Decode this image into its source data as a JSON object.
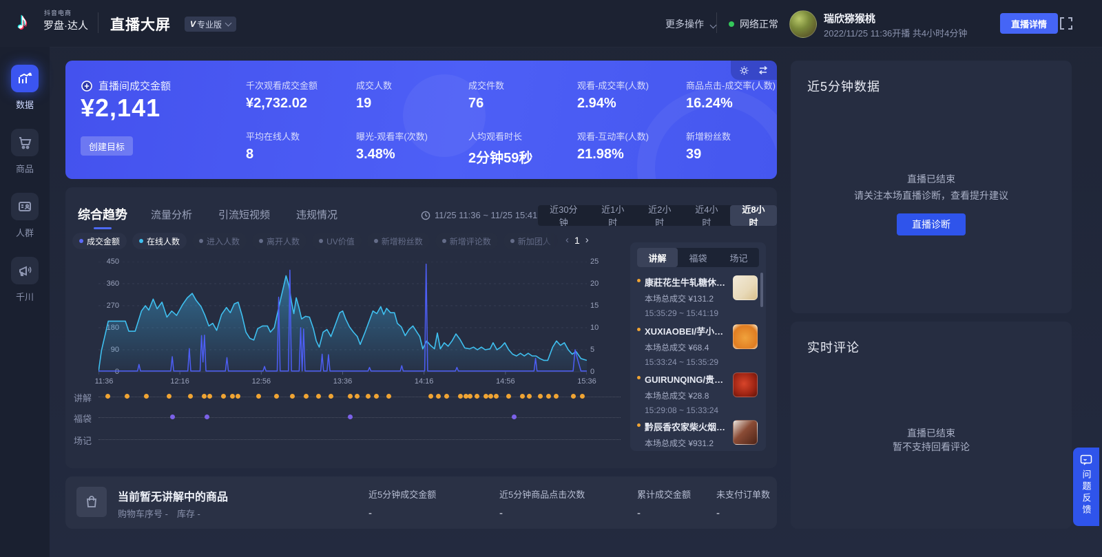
{
  "colors": {
    "page-bg": "#20263a",
    "header-bg": "#1c2232",
    "sidebar-bg": "#1a2030",
    "card-bg": "#262d41",
    "panel-bg": "#2b3349",
    "accent": "#3d5bf5",
    "hero-blue": "#4c5cf2",
    "series-blue": "#4d5ef5",
    "cyan": "#3fc0f0",
    "orange": "#f0a433",
    "purple": "#7b61e8",
    "green": "#34c75a",
    "dim-text": "#8a92ad"
  },
  "header": {
    "brand_small": "抖音电商",
    "brand": "罗盘·达人",
    "title": "直播大屏",
    "version_v": "V",
    "version_label": "专业版",
    "more_actions": "更多操作",
    "network_status": "网络正常",
    "username": "瑞欣猕猴桃",
    "session_info": "2022/11/25 11:36开播 共4小时4分钟",
    "detail_button": "直播详情"
  },
  "sidebar": {
    "items": [
      {
        "label": "数据",
        "active": true
      },
      {
        "label": "商品"
      },
      {
        "label": "人群"
      },
      {
        "label": "千川"
      }
    ]
  },
  "metrics_card": {
    "main_label": "直播间成交金额",
    "main_value": "¥2,141",
    "goal_button": "创建目标",
    "metrics": [
      {
        "label": "千次观看成交金额",
        "value": "¥2,732.02"
      },
      {
        "label": "成交人数",
        "value": "19"
      },
      {
        "label": "成交件数",
        "value": "76"
      },
      {
        "label": "观看-成交率(人数)",
        "value": "2.94%"
      },
      {
        "label": "商品点击-成交率(人数)",
        "value": "16.24%"
      },
      {
        "label": "平均在线人数",
        "value": "8"
      },
      {
        "label": "曝光-观看率(次数)",
        "value": "3.48%"
      },
      {
        "label": "人均观看时长",
        "value": "2分钟59秒"
      },
      {
        "label": "观看-互动率(人数)",
        "value": "21.98%"
      },
      {
        "label": "新增粉丝数",
        "value": "39"
      }
    ]
  },
  "trend": {
    "tabs": [
      {
        "label": "综合趋势",
        "active": true
      },
      {
        "label": "流量分析"
      },
      {
        "label": "引流短视频"
      },
      {
        "label": "违规情况"
      }
    ],
    "time_range": "11/25 11:36 ~ 11/25 15:41",
    "range_buttons": [
      {
        "label": "近30分钟"
      },
      {
        "label": "近1小时"
      },
      {
        "label": "近2小时"
      },
      {
        "label": "近4小时"
      },
      {
        "label": "近8小时",
        "active": true
      }
    ],
    "legend": [
      {
        "label": "成交金额",
        "state": "active",
        "dot": "#5b6af8"
      },
      {
        "label": "在线人数",
        "state": "active",
        "dot": "#3fc0f0"
      },
      {
        "label": "进入人数",
        "state": "dim"
      },
      {
        "label": "离开人数",
        "state": "dim"
      },
      {
        "label": "UV价值",
        "state": "dim"
      },
      {
        "label": "新增粉丝数",
        "state": "dim"
      },
      {
        "label": "新增评论数",
        "state": "dim"
      },
      {
        "label": "新加团人",
        "state": "dim"
      }
    ],
    "page_prev": "‹",
    "page_indicator": "1",
    "page_next": "›"
  },
  "chart_data": {
    "type": "line",
    "title": "综合趋势",
    "x_axis": {
      "labels": [
        "11:36",
        "12:16",
        "12:56",
        "13:36",
        "14:16",
        "14:56",
        "15:36"
      ],
      "start": "11:36",
      "end": "15:41"
    },
    "y_left": {
      "ticks": [
        450,
        360,
        270,
        180,
        90,
        0
      ],
      "min": 0,
      "max": 450,
      "series": "成交金额"
    },
    "y_right": {
      "ticks": [
        25,
        20,
        15,
        10,
        5,
        0
      ],
      "min": 0,
      "max": 25,
      "series": "在线人数"
    },
    "grid": "dashed-horizontal",
    "legend_position": "top-left",
    "series": [
      {
        "name": "成交金额",
        "axis": "left",
        "color": "#4d5ef5",
        "style": "line",
        "points": [
          [
            0,
            3
          ],
          [
            0.08,
            3
          ],
          [
            0.083,
            30
          ],
          [
            0.086,
            3
          ],
          [
            0.148,
            3
          ],
          [
            0.151,
            62
          ],
          [
            0.154,
            3
          ],
          [
            0.183,
            3
          ],
          [
            0.186,
            95
          ],
          [
            0.189,
            3
          ],
          [
            0.208,
            3
          ],
          [
            0.211,
            148
          ],
          [
            0.214,
            40
          ],
          [
            0.217,
            150
          ],
          [
            0.22,
            3
          ],
          [
            0.26,
            3
          ],
          [
            0.263,
            58
          ],
          [
            0.266,
            3
          ],
          [
            0.337,
            3
          ],
          [
            0.34,
            22
          ],
          [
            0.343,
            3
          ],
          [
            0.366,
            3
          ],
          [
            0.369,
            305
          ],
          [
            0.372,
            3
          ],
          [
            0.389,
            3
          ],
          [
            0.392,
            415
          ],
          [
            0.395,
            3
          ],
          [
            0.411,
            3
          ],
          [
            0.414,
            180
          ],
          [
            0.417,
            3
          ],
          [
            0.42,
            175
          ],
          [
            0.423,
            3
          ],
          [
            0.455,
            3
          ],
          [
            0.458,
            72
          ],
          [
            0.461,
            3
          ],
          [
            0.468,
            3
          ],
          [
            0.471,
            70
          ],
          [
            0.474,
            3
          ],
          [
            0.552,
            3
          ],
          [
            0.555,
            18
          ],
          [
            0.558,
            3
          ],
          [
            0.618,
            3
          ],
          [
            0.621,
            25
          ],
          [
            0.624,
            3
          ],
          [
            0.668,
            3
          ],
          [
            0.671,
            440
          ],
          [
            0.674,
            3
          ],
          [
            0.731,
            3
          ],
          [
            0.734,
            18
          ],
          [
            0.737,
            3
          ],
          [
            0.892,
            3
          ],
          [
            0.895,
            55
          ],
          [
            0.898,
            3
          ],
          [
            0.972,
            3
          ],
          [
            0.976,
            90
          ],
          [
            0.982,
            45
          ],
          [
            0.988,
            3
          ],
          [
            1,
            3
          ]
        ]
      },
      {
        "name": "在线人数",
        "axis": "right",
        "color": "#3fc0f0",
        "style": "area-line",
        "points": [
          [
            0,
            0
          ],
          [
            0.006,
            4.8
          ],
          [
            0.02,
            11.5
          ],
          [
            0.055,
            11.5
          ],
          [
            0.062,
            9.2
          ],
          [
            0.075,
            9.2
          ],
          [
            0.088,
            13.8
          ],
          [
            0.096,
            15
          ],
          [
            0.103,
            14
          ],
          [
            0.112,
            16.5
          ],
          [
            0.12,
            14.3
          ],
          [
            0.13,
            15.8
          ],
          [
            0.14,
            12.4
          ],
          [
            0.15,
            13.8
          ],
          [
            0.16,
            12.8
          ],
          [
            0.172,
            15.2
          ],
          [
            0.182,
            16.8
          ],
          [
            0.192,
            17.8
          ],
          [
            0.2,
            16.2
          ],
          [
            0.21,
            14.8
          ],
          [
            0.218,
            12.8
          ],
          [
            0.226,
            10.4
          ],
          [
            0.234,
            11
          ],
          [
            0.242,
            9.4
          ],
          [
            0.252,
            13
          ],
          [
            0.262,
            14.6
          ],
          [
            0.27,
            13.4
          ],
          [
            0.278,
            15.4
          ],
          [
            0.286,
            15.8
          ],
          [
            0.294,
            12.8
          ],
          [
            0.302,
            9
          ],
          [
            0.31,
            7.6
          ],
          [
            0.318,
            7.2
          ],
          [
            0.326,
            9.8
          ],
          [
            0.336,
            10.4
          ],
          [
            0.346,
            10.4
          ],
          [
            0.352,
            9
          ],
          [
            0.36,
            10
          ],
          [
            0.368,
            14
          ],
          [
            0.374,
            17
          ],
          [
            0.38,
            19.8
          ],
          [
            0.384,
            21.8
          ],
          [
            0.39,
            19.6
          ],
          [
            0.395,
            16
          ],
          [
            0.4,
            13.2
          ],
          [
            0.405,
            16.8
          ],
          [
            0.41,
            14.8
          ],
          [
            0.416,
            12
          ],
          [
            0.424,
            12.6
          ],
          [
            0.432,
            12.4
          ],
          [
            0.44,
            9.8
          ],
          [
            0.446,
            7
          ],
          [
            0.452,
            5.6
          ],
          [
            0.46,
            9
          ],
          [
            0.468,
            9.6
          ],
          [
            0.476,
            8
          ],
          [
            0.486,
            11
          ],
          [
            0.494,
            13.4
          ],
          [
            0.5,
            13.8
          ],
          [
            0.506,
            12
          ],
          [
            0.514,
            10.2
          ],
          [
            0.522,
            9
          ],
          [
            0.53,
            8
          ],
          [
            0.536,
            6.2
          ],
          [
            0.546,
            9
          ],
          [
            0.556,
            12
          ],
          [
            0.562,
            13.8
          ],
          [
            0.57,
            13.2
          ],
          [
            0.578,
            14.8
          ],
          [
            0.584,
            13
          ],
          [
            0.59,
            14.4
          ],
          [
            0.598,
            13.4
          ],
          [
            0.606,
            13.4
          ],
          [
            0.612,
            11
          ],
          [
            0.62,
            10.2
          ],
          [
            0.628,
            8.2
          ],
          [
            0.636,
            9.6
          ],
          [
            0.644,
            10.4
          ],
          [
            0.652,
            9
          ],
          [
            0.658,
            8
          ],
          [
            0.664,
            5.2
          ],
          [
            0.672,
            7
          ],
          [
            0.68,
            6
          ],
          [
            0.688,
            5.2
          ],
          [
            0.694,
            8.8
          ],
          [
            0.7,
            5.2
          ],
          [
            0.708,
            6.6
          ],
          [
            0.716,
            5.8
          ],
          [
            0.724,
            7
          ],
          [
            0.732,
            8.6
          ],
          [
            0.74,
            7.4
          ],
          [
            0.75,
            5.4
          ],
          [
            0.76,
            5.2
          ],
          [
            0.768,
            5.6
          ],
          [
            0.776,
            5
          ],
          [
            0.784,
            5.6
          ],
          [
            0.792,
            5
          ],
          [
            0.802,
            5.2
          ],
          [
            0.808,
            6.6
          ],
          [
            0.816,
            5
          ],
          [
            0.824,
            5.6
          ],
          [
            0.832,
            6.6
          ],
          [
            0.84,
            5
          ],
          [
            0.848,
            4
          ],
          [
            0.856,
            3.6
          ],
          [
            0.864,
            4.2
          ],
          [
            0.872,
            3.6
          ],
          [
            0.88,
            4.2
          ],
          [
            0.888,
            3.6
          ],
          [
            0.896,
            3.6
          ],
          [
            0.904,
            3
          ],
          [
            0.912,
            2.6
          ],
          [
            0.92,
            2.6
          ],
          [
            0.93,
            5.6
          ],
          [
            0.938,
            7
          ],
          [
            0.946,
            6
          ],
          [
            0.954,
            6.6
          ],
          [
            0.962,
            5
          ],
          [
            0.97,
            4
          ],
          [
            0.978,
            4.6
          ],
          [
            0.988,
            3
          ],
          [
            1,
            2.6
          ]
        ]
      }
    ]
  },
  "markers": {
    "rows": [
      {
        "label": "讲解",
        "color": "#f0a433",
        "dots": [
          0.018,
          0.058,
          0.097,
          0.144,
          0.188,
          0.216,
          0.227,
          0.255,
          0.274,
          0.285,
          0.327,
          0.364,
          0.396,
          0.425,
          0.45,
          0.475,
          0.515,
          0.529,
          0.551,
          0.568,
          0.594,
          0.68,
          0.695,
          0.712,
          0.74,
          0.752,
          0.76,
          0.774,
          0.793,
          0.803,
          0.814,
          0.839,
          0.867,
          0.881,
          0.904,
          0.921,
          0.937,
          0.972,
          0.99
        ]
      },
      {
        "label": "福袋",
        "color": "#7b61e8",
        "dots": [
          0.151,
          0.222,
          0.515,
          0.85
        ]
      },
      {
        "label": "场记",
        "color": "#7b61e8",
        "dots": []
      }
    ]
  },
  "explain_panel": {
    "tabs": [
      {
        "label": "讲解",
        "active": true
      },
      {
        "label": "福袋"
      },
      {
        "label": "场记"
      }
    ],
    "items": [
      {
        "title": "康莊花生牛轧糖休闲...",
        "sales": "本场总成交 ¥131.2",
        "time": "15:35:29 ~ 15:41:19",
        "thumb": "cream-nougat-pack"
      },
      {
        "title": "XUXIAOBEI/芋小贝...",
        "sales": "本场总成交 ¥68.4",
        "time": "15:33:24 ~ 15:35:29",
        "thumb": "orange-taro-snack"
      },
      {
        "title": "GUIRUNQING/贵润...",
        "sales": "本场总成交 ¥28.8",
        "time": "15:29:08 ~ 15:33:24",
        "thumb": "red-spicy-food"
      },
      {
        "title": "黔辰香农家柴火烟熏...",
        "sales": "本场总成交 ¥931.2",
        "thumb": "smoked-bacon"
      }
    ]
  },
  "five_min_panel": {
    "title": "近5分钟数据",
    "empty_line1": "直播已结束",
    "empty_line2": "请关注本场直播诊断，查看提升建议",
    "diagnose_button": "直播诊断"
  },
  "comments_panel": {
    "title": "实时评论",
    "empty_line1": "直播已结束",
    "empty_line2": "暂不支持回看评论"
  },
  "bottom_bar": {
    "title": "当前暂无讲解中的商品",
    "subtitle": "购物车序号 -　库存 -",
    "stats": [
      {
        "label": "近5分钟成交金额",
        "value": "-"
      },
      {
        "label": "近5分钟商品点击次数",
        "value": "-"
      },
      {
        "label": "累计成交金额",
        "value": "-"
      },
      {
        "label": "未支付订单数",
        "value": "-"
      }
    ]
  },
  "feedback_button": {
    "label": "问题反馈"
  }
}
